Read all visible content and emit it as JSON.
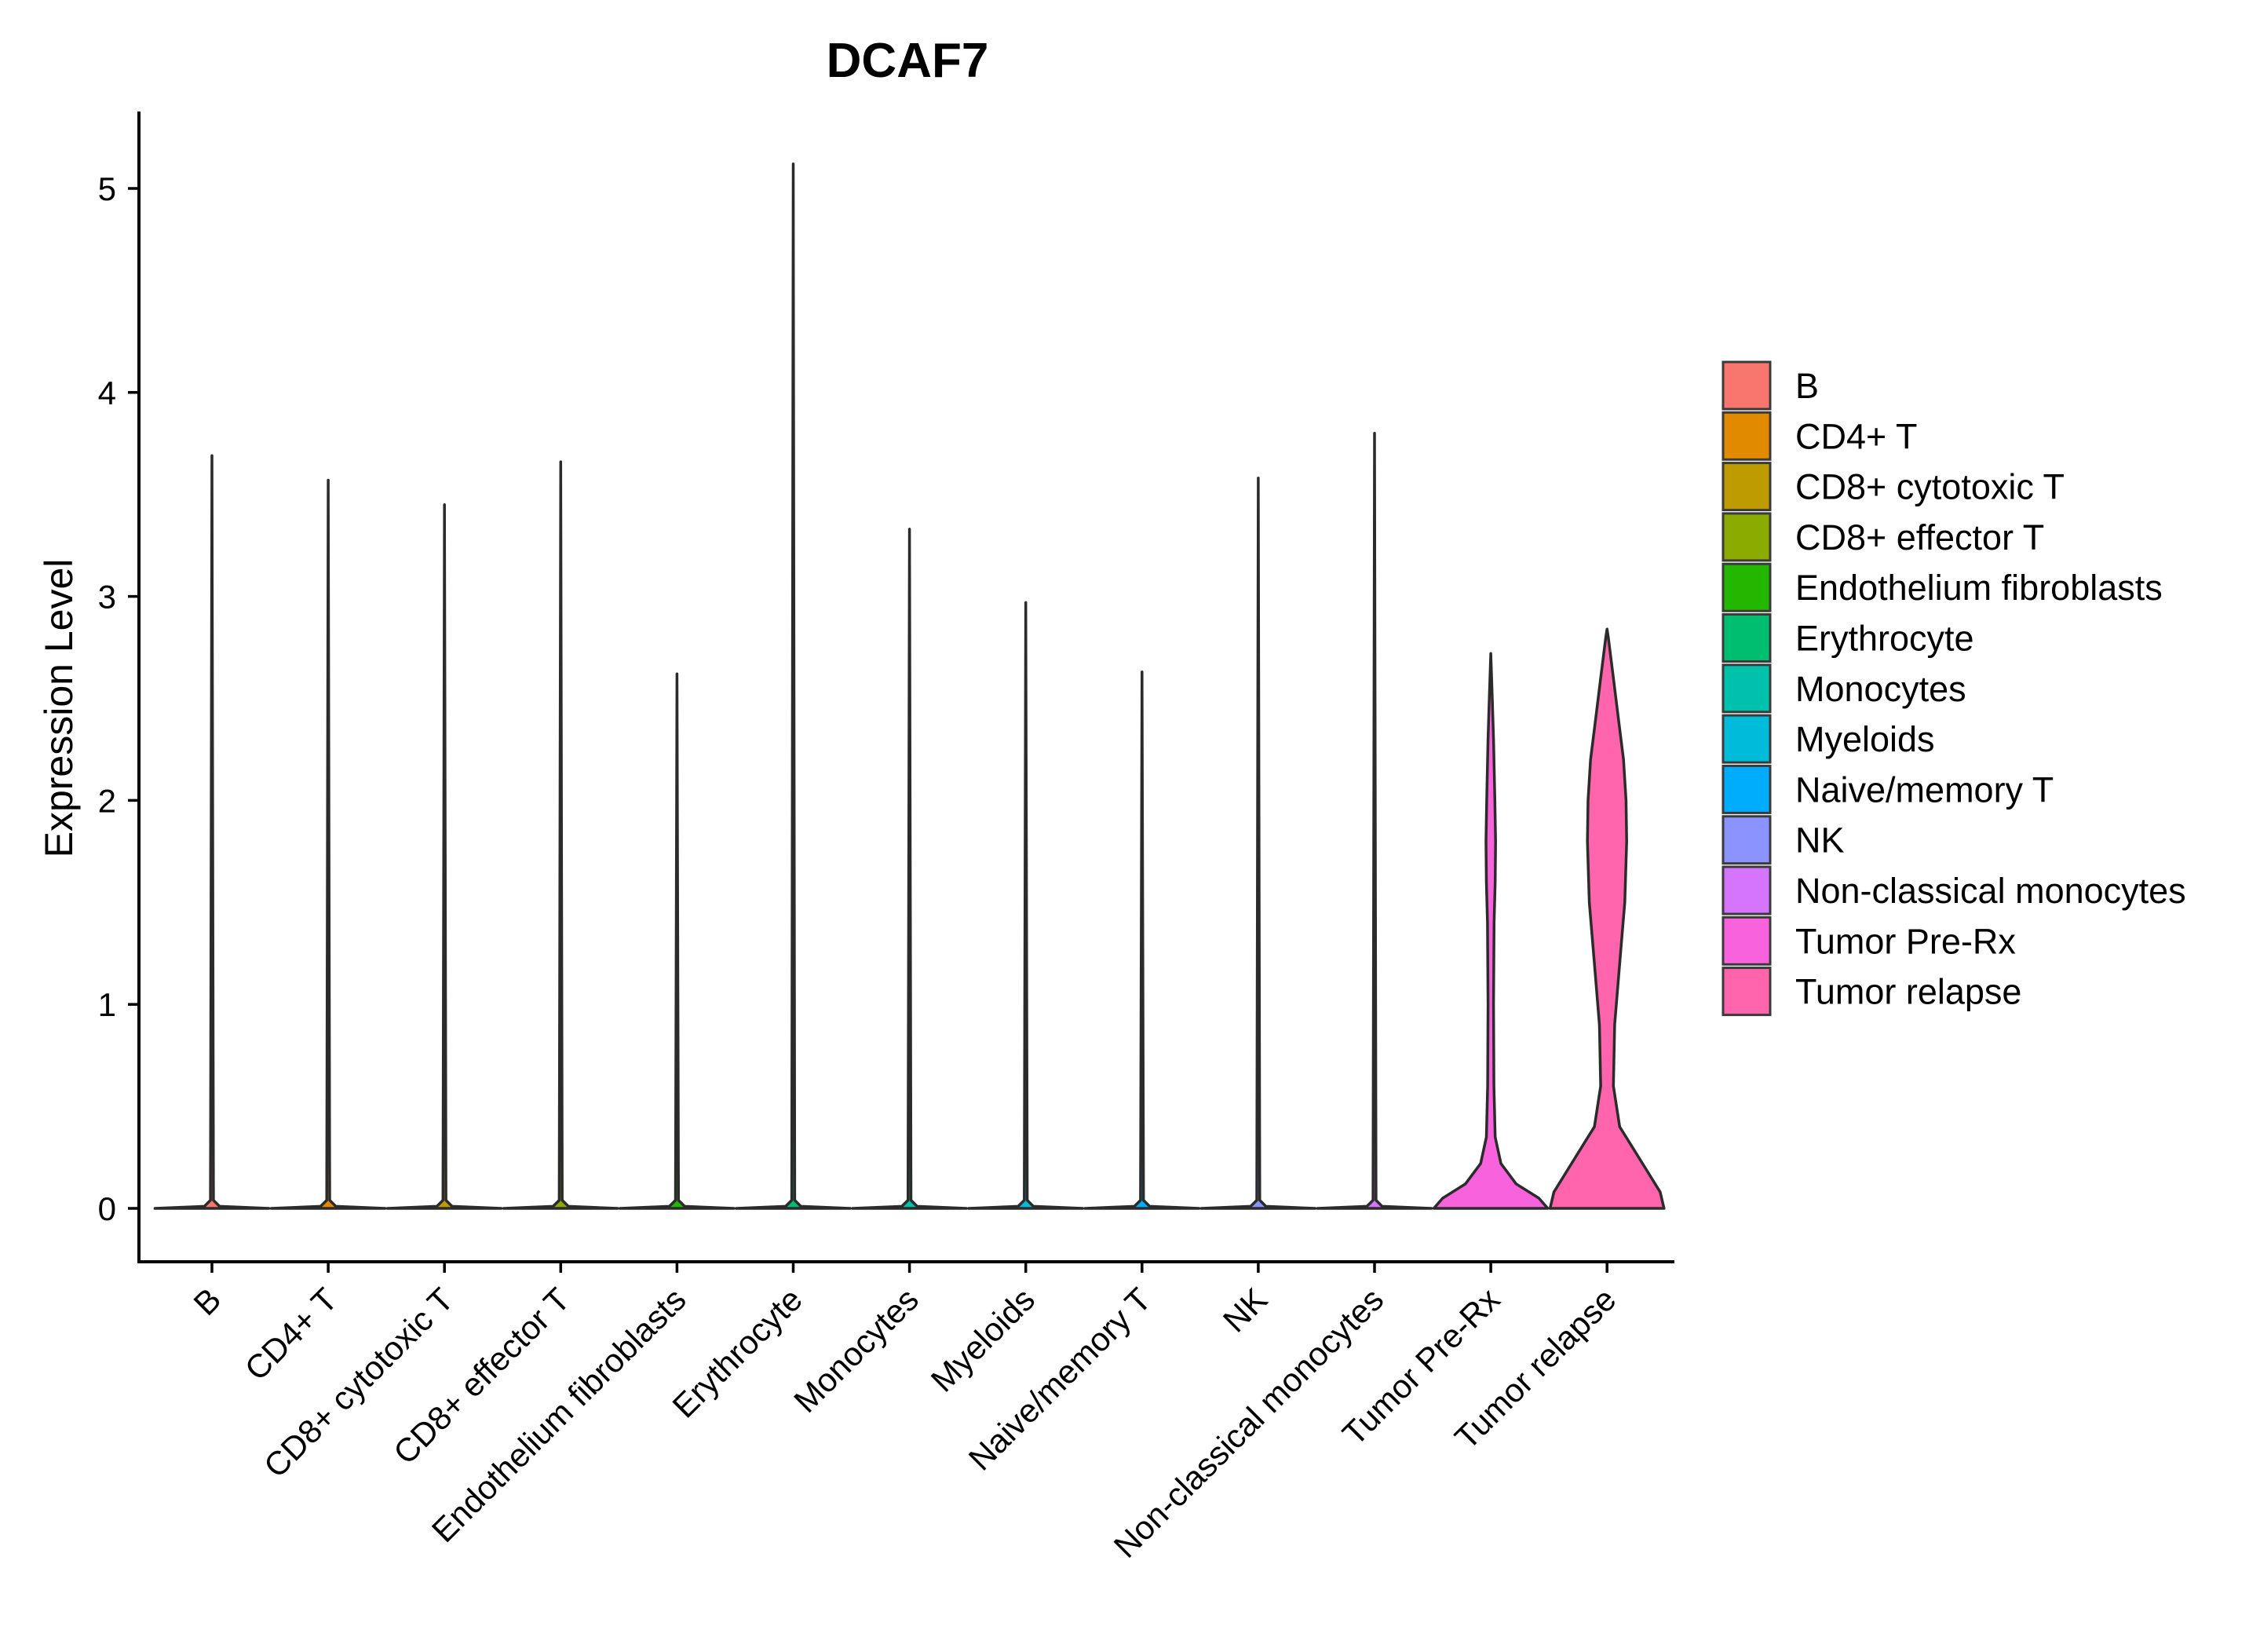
{
  "chart_data": {
    "type": "violin",
    "title": "DCAF7",
    "xlabel": "",
    "ylabel": "Expression Level",
    "ylim": [
      -0.25,
      5.38
    ],
    "yticks": [
      0,
      1,
      2,
      3,
      4,
      5
    ],
    "categories": [
      "B",
      "CD4+ T",
      "CD8+ cytotoxic T",
      "CD8+ effector T",
      "Endothelium fibroblasts",
      "Erythrocyte",
      "Monocytes",
      "Myeloids",
      "Naive/memory T",
      "NK",
      "Non-classical monocytes",
      "Tumor Pre-Rx",
      "Tumor relapse"
    ],
    "colors": [
      "#F8766D",
      "#E18A00",
      "#BE9C00",
      "#8CAB00",
      "#24B700",
      "#00BE70",
      "#00C1AB",
      "#00BBDA",
      "#00ACFC",
      "#8B93FF",
      "#D575FE",
      "#F962DD",
      "#FF65AC"
    ],
    "max_values": [
      3.69,
      3.57,
      3.45,
      3.66,
      2.62,
      5.12,
      3.33,
      2.97,
      2.63,
      3.58,
      3.8,
      2.72,
      2.84
    ],
    "violin_profiles": [
      [
        [
          0,
          0.45
        ],
        [
          0.01,
          0.06
        ],
        [
          0.04,
          0.012
        ],
        [
          3.69,
          0.0
        ]
      ],
      [
        [
          0,
          0.45
        ],
        [
          0.01,
          0.06
        ],
        [
          0.04,
          0.012
        ],
        [
          3.57,
          0.0
        ]
      ],
      [
        [
          0,
          0.45
        ],
        [
          0.01,
          0.06
        ],
        [
          0.04,
          0.012
        ],
        [
          3.45,
          0.0
        ]
      ],
      [
        [
          0,
          0.45
        ],
        [
          0.01,
          0.06
        ],
        [
          0.04,
          0.012
        ],
        [
          3.66,
          0.0
        ]
      ],
      [
        [
          0,
          0.45
        ],
        [
          0.01,
          0.06
        ],
        [
          0.04,
          0.012
        ],
        [
          2.62,
          0.0
        ]
      ],
      [
        [
          0,
          0.45
        ],
        [
          0.01,
          0.06
        ],
        [
          0.04,
          0.012
        ],
        [
          5.12,
          0.0
        ]
      ],
      [
        [
          0,
          0.45
        ],
        [
          0.01,
          0.06
        ],
        [
          0.04,
          0.012
        ],
        [
          3.33,
          0.0
        ]
      ],
      [
        [
          0,
          0.45
        ],
        [
          0.01,
          0.06
        ],
        [
          0.04,
          0.012
        ],
        [
          2.97,
          0.0
        ]
      ],
      [
        [
          0,
          0.45
        ],
        [
          0.01,
          0.06
        ],
        [
          0.04,
          0.012
        ],
        [
          2.63,
          0.0
        ]
      ],
      [
        [
          0,
          0.45
        ],
        [
          0.01,
          0.06
        ],
        [
          0.04,
          0.012
        ],
        [
          3.58,
          0.0
        ]
      ],
      [
        [
          0,
          0.45
        ],
        [
          0.01,
          0.06
        ],
        [
          0.04,
          0.012
        ],
        [
          3.8,
          0.0
        ]
      ],
      [
        [
          0,
          0.45
        ],
        [
          0.05,
          0.38
        ],
        [
          0.12,
          0.2
        ],
        [
          0.22,
          0.08
        ],
        [
          0.35,
          0.035
        ],
        [
          0.6,
          0.025
        ],
        [
          1.0,
          0.022
        ],
        [
          1.4,
          0.026
        ],
        [
          1.6,
          0.035
        ],
        [
          1.8,
          0.038
        ],
        [
          2.0,
          0.032
        ],
        [
          2.3,
          0.022
        ],
        [
          2.5,
          0.012
        ],
        [
          2.72,
          0.0
        ]
      ],
      [
        [
          0,
          0.45
        ],
        [
          0.08,
          0.42
        ],
        [
          0.2,
          0.3
        ],
        [
          0.3,
          0.2
        ],
        [
          0.4,
          0.1
        ],
        [
          0.6,
          0.05
        ],
        [
          0.9,
          0.06
        ],
        [
          1.2,
          0.1
        ],
        [
          1.5,
          0.14
        ],
        [
          1.8,
          0.155
        ],
        [
          2.0,
          0.15
        ],
        [
          2.2,
          0.13
        ],
        [
          2.4,
          0.09
        ],
        [
          2.6,
          0.05
        ],
        [
          2.8,
          0.01
        ],
        [
          2.84,
          0.0
        ]
      ]
    ],
    "legend": {
      "position": "right",
      "entries": [
        "B",
        "CD4+ T",
        "CD8+ cytotoxic T",
        "CD8+ effector T",
        "Endothelium fibroblasts",
        "Erythrocyte",
        "Monocytes",
        "Myeloids",
        "Naive/memory T",
        "NK",
        "Non-classical monocytes",
        "Tumor Pre-Rx",
        "Tumor relapse"
      ]
    },
    "grid": false
  }
}
